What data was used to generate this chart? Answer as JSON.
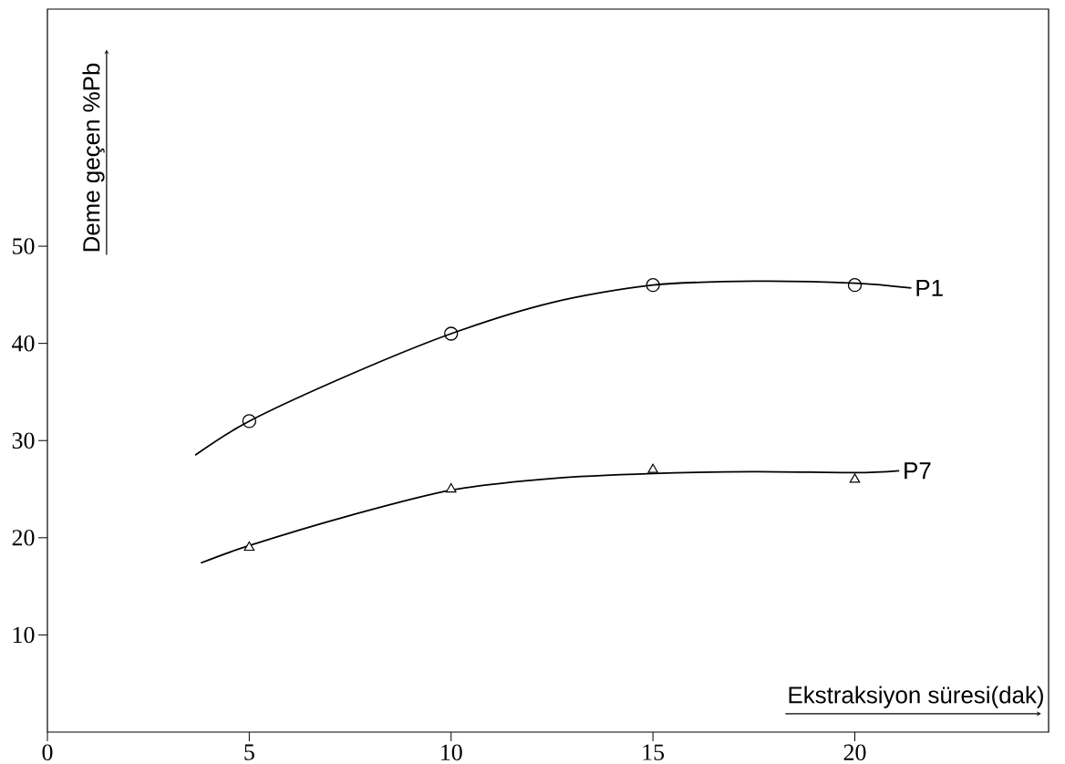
{
  "chart_data": {
    "type": "line",
    "xlabel": "Ekstraksiyon süresi(dak)",
    "ylabel": "Deme geçen %Pb",
    "xlim": [
      0,
      24.8
    ],
    "ylim": [
      0,
      74.4
    ],
    "xticks": [
      0,
      5,
      10,
      15,
      20
    ],
    "yticks": [
      10,
      20,
      30,
      40,
      50
    ],
    "series": [
      {
        "name": "P1",
        "color": "#000000",
        "marker": "none",
        "x": [
          3.66,
          5,
          7.5,
          10,
          12.5,
          15,
          17.5,
          20,
          21.4
        ],
        "values": [
          28.5,
          32,
          36.8,
          41,
          44.2,
          46,
          46.4,
          46.2,
          45.7
        ]
      },
      {
        "name": "P7",
        "color": "#000000",
        "marker": "none",
        "x": [
          3.8,
          5,
          7.5,
          10,
          12.5,
          15,
          17.5,
          20,
          21.1
        ],
        "values": [
          17.4,
          19.2,
          22.3,
          24.9,
          26.1,
          26.6,
          26.8,
          26.7,
          26.9
        ]
      },
      {
        "type": "scatter",
        "color": "#000000",
        "marker": "circle",
        "x": [
          5,
          10,
          15,
          20
        ],
        "values": [
          32,
          41,
          46,
          46
        ]
      },
      {
        "type": "scatter",
        "color": "#000000",
        "marker": "triangle",
        "x": [
          5,
          10,
          15,
          20
        ],
        "values": [
          19,
          25,
          27,
          26
        ]
      }
    ]
  }
}
